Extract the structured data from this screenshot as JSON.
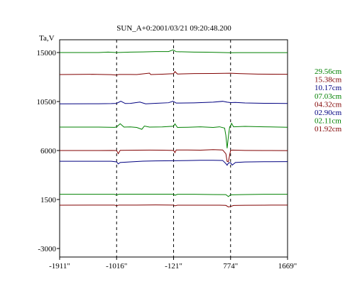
{
  "chart_data": {
    "type": "line",
    "title": "SUN_A+0:2001/03/21 09:20:48.200",
    "ylabel": "Ta,V",
    "xlabel": "",
    "xlim": [
      -1911,
      1669
    ],
    "ylim": [
      -3000,
      15000
    ],
    "x_ticks": [
      -1911,
      -1016,
      -121,
      774,
      1669
    ],
    "x_tick_labels": [
      "-1911\"",
      "-1016\"",
      "-121\"",
      "774\"",
      "1669\""
    ],
    "y_ticks": [
      15000,
      10500,
      6000,
      1500,
      -3000
    ],
    "y_tick_labels": [
      "15000",
      "10500",
      "6000",
      "1500",
      "-3000"
    ],
    "vlines": [
      -1016,
      -121,
      774
    ],
    "grid": false,
    "legend_position": "right",
    "series": [
      {
        "name": "29.56cm",
        "color": "#008000",
        "points": [
          [
            -1911,
            15000
          ],
          [
            -1300,
            15000
          ],
          [
            -1150,
            15040
          ],
          [
            -1016,
            15000
          ],
          [
            -800,
            15040
          ],
          [
            -600,
            15060
          ],
          [
            -400,
            15090
          ],
          [
            -200,
            15090
          ],
          [
            -130,
            15240
          ],
          [
            -80,
            15080
          ],
          [
            200,
            15040
          ],
          [
            400,
            15030
          ],
          [
            600,
            15010
          ],
          [
            774,
            14980
          ],
          [
            900,
            14990
          ],
          [
            1100,
            14990
          ],
          [
            1400,
            14990
          ],
          [
            1669,
            14990
          ]
        ]
      },
      {
        "name": "15.38cm",
        "color": "#800000",
        "points": [
          [
            -1911,
            12980
          ],
          [
            -1400,
            13000
          ],
          [
            -1100,
            12970
          ],
          [
            -1016,
            12930
          ],
          [
            -980,
            12990
          ],
          [
            -800,
            12990
          ],
          [
            -700,
            12980
          ],
          [
            -500,
            13110
          ],
          [
            -480,
            12980
          ],
          [
            -300,
            13010
          ],
          [
            -121,
            13060
          ],
          [
            -100,
            13250
          ],
          [
            -60,
            13030
          ],
          [
            200,
            13070
          ],
          [
            500,
            13080
          ],
          [
            774,
            13100
          ],
          [
            900,
            13070
          ],
          [
            1200,
            13020
          ],
          [
            1669,
            13000
          ]
        ]
      },
      {
        "name": "10.17cm",
        "color": "#000080",
        "points": [
          [
            -1911,
            10290
          ],
          [
            -1300,
            10300
          ],
          [
            -1100,
            10310
          ],
          [
            -1016,
            10330
          ],
          [
            -950,
            10530
          ],
          [
            -880,
            10320
          ],
          [
            -800,
            10330
          ],
          [
            -650,
            10450
          ],
          [
            -560,
            10290
          ],
          [
            -400,
            10340
          ],
          [
            -200,
            10390
          ],
          [
            -130,
            10530
          ],
          [
            -80,
            10360
          ],
          [
            200,
            10380
          ],
          [
            500,
            10440
          ],
          [
            650,
            10520
          ],
          [
            720,
            10440
          ],
          [
            774,
            10400
          ],
          [
            850,
            10420
          ],
          [
            1000,
            10370
          ],
          [
            1300,
            10340
          ],
          [
            1669,
            10320
          ]
        ]
      },
      {
        "name": "07.03cm",
        "color": "#008000",
        "points": [
          [
            -1911,
            8150
          ],
          [
            -1300,
            8150
          ],
          [
            -1050,
            8130
          ],
          [
            -1016,
            8170
          ],
          [
            -960,
            8460
          ],
          [
            -900,
            8150
          ],
          [
            -800,
            8170
          ],
          [
            -700,
            8120
          ],
          [
            -620,
            7950
          ],
          [
            -580,
            8250
          ],
          [
            -500,
            8150
          ],
          [
            -300,
            8170
          ],
          [
            -121,
            8230
          ],
          [
            -100,
            8450
          ],
          [
            -60,
            8120
          ],
          [
            100,
            8140
          ],
          [
            300,
            8180
          ],
          [
            500,
            8120
          ],
          [
            600,
            8180
          ],
          [
            680,
            8060
          ],
          [
            700,
            7400
          ],
          [
            720,
            6210
          ],
          [
            740,
            7300
          ],
          [
            760,
            8180
          ],
          [
            774,
            8230
          ],
          [
            790,
            8500
          ],
          [
            820,
            8180
          ],
          [
            1000,
            8220
          ],
          [
            1300,
            8180
          ],
          [
            1669,
            8140
          ]
        ]
      },
      {
        "name": "04.32cm",
        "color": "#800000",
        "points": [
          [
            -1911,
            6000
          ],
          [
            -1300,
            6000
          ],
          [
            -1100,
            6010
          ],
          [
            -1016,
            6000
          ],
          [
            -990,
            5710
          ],
          [
            -960,
            6020
          ],
          [
            -700,
            6030
          ],
          [
            -500,
            6040
          ],
          [
            -300,
            6030
          ],
          [
            -121,
            6010
          ],
          [
            -100,
            5810
          ],
          [
            -80,
            6050
          ],
          [
            100,
            6050
          ],
          [
            300,
            6030
          ],
          [
            500,
            6080
          ],
          [
            650,
            6050
          ],
          [
            700,
            5700
          ],
          [
            720,
            5000
          ],
          [
            740,
            4970
          ],
          [
            760,
            5600
          ],
          [
            774,
            6000
          ],
          [
            800,
            6040
          ],
          [
            1000,
            6010
          ],
          [
            1300,
            6000
          ],
          [
            1669,
            5990
          ]
        ]
      },
      {
        "name": "02.90cm",
        "color": "#000080",
        "points": [
          [
            -1911,
            5010
          ],
          [
            -1200,
            5010
          ],
          [
            -1100,
            5010
          ],
          [
            -1016,
            4960
          ],
          [
            -990,
            4770
          ],
          [
            -960,
            4900
          ],
          [
            -800,
            4960
          ],
          [
            -600,
            5020
          ],
          [
            -400,
            5050
          ],
          [
            -121,
            5060
          ],
          [
            100,
            5080
          ],
          [
            300,
            5100
          ],
          [
            500,
            5100
          ],
          [
            650,
            5090
          ],
          [
            700,
            4800
          ],
          [
            720,
            4650
          ],
          [
            740,
            4850
          ],
          [
            774,
            4880
          ],
          [
            800,
            4660
          ],
          [
            850,
            4900
          ],
          [
            1000,
            4950
          ],
          [
            1300,
            4970
          ],
          [
            1669,
            4980
          ]
        ]
      },
      {
        "name": "02.11cm",
        "color": "#008000",
        "points": [
          [
            -1911,
            1980
          ],
          [
            -1300,
            1980
          ],
          [
            -1050,
            1980
          ],
          [
            -1016,
            1900
          ],
          [
            -980,
            1990
          ],
          [
            -700,
            1990
          ],
          [
            -400,
            1990
          ],
          [
            -121,
            1990
          ],
          [
            -100,
            1890
          ],
          [
            -60,
            1980
          ],
          [
            200,
            1980
          ],
          [
            500,
            1960
          ],
          [
            700,
            1950
          ],
          [
            740,
            1770
          ],
          [
            774,
            1930
          ],
          [
            1000,
            1960
          ],
          [
            1300,
            1980
          ],
          [
            1669,
            1980
          ]
        ]
      },
      {
        "name": "01.92cm",
        "color": "#800000",
        "points": [
          [
            -1911,
            980
          ],
          [
            -1300,
            990
          ],
          [
            -1050,
            990
          ],
          [
            -1016,
            930
          ],
          [
            -980,
            990
          ],
          [
            -700,
            990
          ],
          [
            -400,
            1000
          ],
          [
            -121,
            990
          ],
          [
            -100,
            920
          ],
          [
            -60,
            980
          ],
          [
            300,
            980
          ],
          [
            600,
            980
          ],
          [
            700,
            960
          ],
          [
            740,
            820
          ],
          [
            774,
            860
          ],
          [
            820,
            950
          ],
          [
            1000,
            970
          ],
          [
            1300,
            980
          ],
          [
            1669,
            990
          ]
        ]
      }
    ]
  }
}
